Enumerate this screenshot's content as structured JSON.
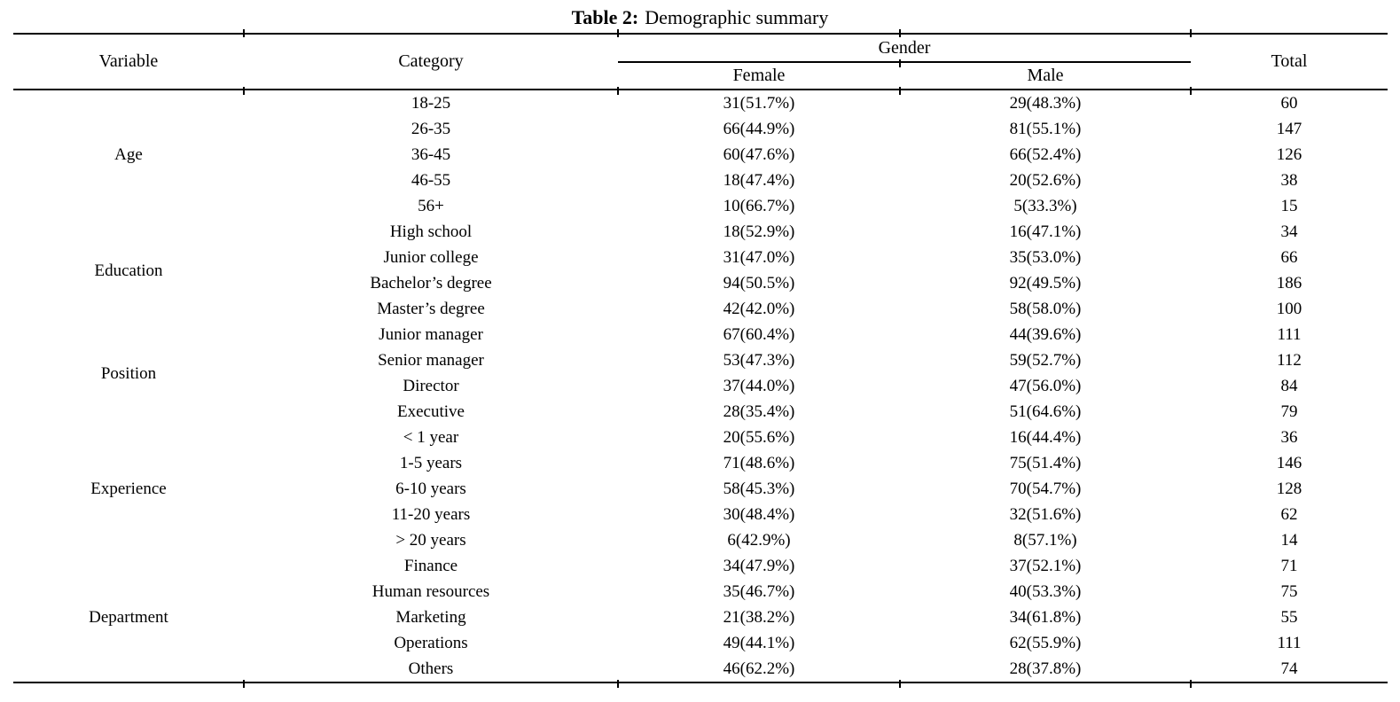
{
  "title": {
    "label": "Table 2:",
    "caption": "Demographic summary"
  },
  "table": {
    "headers": {
      "variable": "Variable",
      "category": "Category",
      "gender": "Gender",
      "female": "Female",
      "male": "Male",
      "total": "Total"
    },
    "groups": [
      {
        "variable": "Age",
        "rows": [
          {
            "category": "18-25",
            "female": "31(51.7%)",
            "male": "29(48.3%)",
            "total": "60"
          },
          {
            "category": "26-35",
            "female": "66(44.9%)",
            "male": "81(55.1%)",
            "total": "147"
          },
          {
            "category": "36-45",
            "female": "60(47.6%)",
            "male": "66(52.4%)",
            "total": "126"
          },
          {
            "category": "46-55",
            "female": "18(47.4%)",
            "male": "20(52.6%)",
            "total": "38"
          },
          {
            "category": "56+",
            "female": "10(66.7%)",
            "male": "5(33.3%)",
            "total": "15"
          }
        ]
      },
      {
        "variable": "Education",
        "rows": [
          {
            "category": "High school",
            "female": "18(52.9%)",
            "male": "16(47.1%)",
            "total": "34"
          },
          {
            "category": "Junior college",
            "female": "31(47.0%)",
            "male": "35(53.0%)",
            "total": "66"
          },
          {
            "category": "Bachelor’s degree",
            "female": "94(50.5%)",
            "male": "92(49.5%)",
            "total": "186"
          },
          {
            "category": "Master’s degree",
            "female": "42(42.0%)",
            "male": "58(58.0%)",
            "total": "100"
          }
        ]
      },
      {
        "variable": "Position",
        "rows": [
          {
            "category": "Junior manager",
            "female": "67(60.4%)",
            "male": "44(39.6%)",
            "total": "111"
          },
          {
            "category": "Senior manager",
            "female": "53(47.3%)",
            "male": "59(52.7%)",
            "total": "112"
          },
          {
            "category": "Director",
            "female": "37(44.0%)",
            "male": "47(56.0%)",
            "total": "84"
          },
          {
            "category": "Executive",
            "female": "28(35.4%)",
            "male": "51(64.6%)",
            "total": "79"
          }
        ]
      },
      {
        "variable": "Experience",
        "rows": [
          {
            "category": "< 1 year",
            "female": "20(55.6%)",
            "male": "16(44.4%)",
            "total": "36"
          },
          {
            "category": "1-5 years",
            "female": "71(48.6%)",
            "male": "75(51.4%)",
            "total": "146"
          },
          {
            "category": "6-10 years",
            "female": "58(45.3%)",
            "male": "70(54.7%)",
            "total": "128"
          },
          {
            "category": "11-20 years",
            "female": "30(48.4%)",
            "male": "32(51.6%)",
            "total": "62"
          },
          {
            "category": "> 20 years",
            "female": "6(42.9%)",
            "male": "8(57.1%)",
            "total": "14"
          }
        ]
      },
      {
        "variable": "Department",
        "rows": [
          {
            "category": "Finance",
            "female": "34(47.9%)",
            "male": "37(52.1%)",
            "total": "71"
          },
          {
            "category": "Human resources",
            "female": "35(46.7%)",
            "male": "40(53.3%)",
            "total": "75"
          },
          {
            "category": "Marketing",
            "female": "21(38.2%)",
            "male": "34(61.8%)",
            "total": "55"
          },
          {
            "category": "Operations",
            "female": "49(44.1%)",
            "male": "62(55.9%)",
            "total": "111"
          },
          {
            "category": "Others",
            "female": "46(62.2%)",
            "male": "28(37.8%)",
            "total": "74"
          }
        ]
      }
    ]
  },
  "colors": {
    "text": "#000000",
    "rule": "#000000",
    "background": "#ffffff"
  }
}
